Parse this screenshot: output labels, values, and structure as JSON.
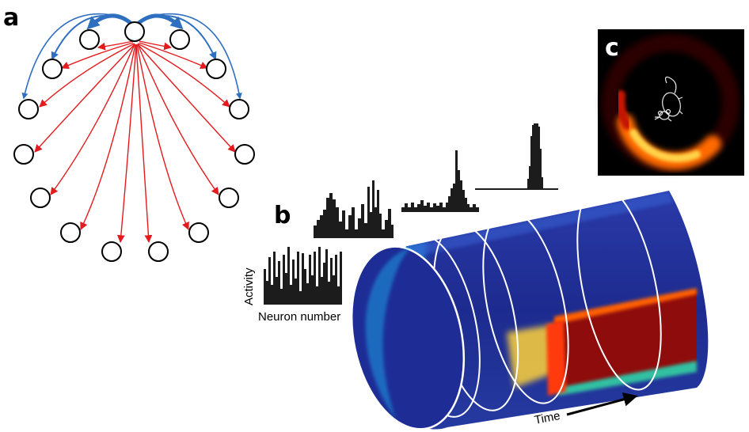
{
  "panels": {
    "a": {
      "letter": "a"
    },
    "b": {
      "letter": "b",
      "ylabel": "Activity",
      "xlabel": "Neuron number",
      "time_label": "Time"
    },
    "c": {
      "letter": "c"
    }
  },
  "colors": {
    "excitatory": "#2f6fc0",
    "inhibitory": "#e41a1c",
    "neuron_stroke": "#000000",
    "histogram": "#1c1c1c",
    "cylinder_base": "#1d2b8f",
    "bump": "#9e0e0e",
    "ring_glow": "#ffb000"
  },
  "icons": [
    "neuron-circle",
    "excitatory-arrow",
    "inhibitory-arrow",
    "mouse-icon",
    "time-arrow"
  ]
}
